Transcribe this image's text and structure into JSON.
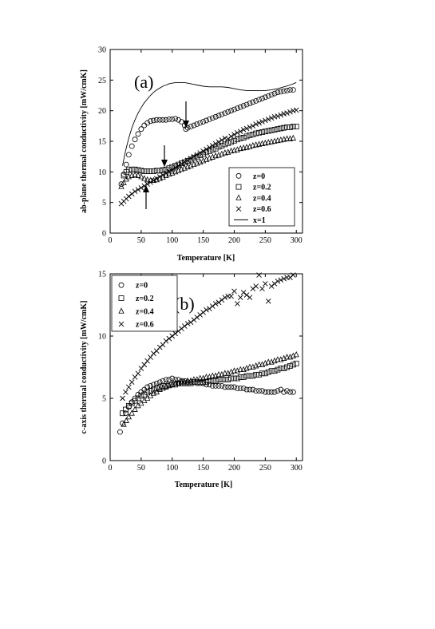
{
  "chart_data": [
    {
      "type": "scatter",
      "panel_label": "(a)",
      "xlabel": "Temperature [K]",
      "ylabel": "ab-plane thermal conductivity [mW/cmK]",
      "xlim": [
        0,
        310
      ],
      "ylim": [
        0,
        30
      ],
      "xticks": [
        "0",
        "50",
        "100",
        "150",
        "200",
        "250",
        "300"
      ],
      "yticks": [
        "0",
        "5",
        "10",
        "15",
        "20",
        "25",
        "30"
      ],
      "legend_position": "lower-right",
      "series": [
        {
          "name": "z=0",
          "marker": "circle",
          "x": [
            18,
            22,
            26,
            30,
            35,
            40,
            45,
            50,
            55,
            60,
            65,
            70,
            75,
            80,
            85,
            90,
            95,
            100,
            105,
            110,
            115,
            120,
            122,
            125,
            130,
            135,
            140,
            145,
            150,
            155,
            160,
            165,
            170,
            175,
            180,
            185,
            190,
            195,
            200,
            205,
            210,
            215,
            220,
            225,
            230,
            235,
            240,
            245,
            250,
            255,
            260,
            265,
            270,
            275,
            280,
            285,
            290,
            295
          ],
          "y": [
            8.0,
            9.6,
            11.2,
            12.8,
            14.2,
            15.3,
            16.2,
            17.0,
            17.6,
            18.0,
            18.3,
            18.4,
            18.5,
            18.5,
            18.5,
            18.5,
            18.6,
            18.6,
            18.7,
            18.5,
            18.2,
            17.6,
            17.0,
            17.2,
            17.4,
            17.6,
            17.8,
            18.0,
            18.2,
            18.4,
            18.6,
            18.8,
            19.0,
            19.2,
            19.4,
            19.6,
            19.8,
            20.0,
            20.2,
            20.4,
            20.6,
            20.8,
            21.0,
            21.2,
            21.4,
            21.6,
            21.8,
            22.0,
            22.2,
            22.4,
            22.6,
            22.8,
            23.0,
            23.1,
            23.2,
            23.3,
            23.4,
            23.4
          ]
        },
        {
          "name": "z=0.2",
          "marker": "square",
          "x": [
            22,
            26,
            30,
            35,
            40,
            45,
            50,
            55,
            60,
            65,
            70,
            75,
            80,
            85,
            90,
            95,
            100,
            105,
            110,
            115,
            120,
            125,
            130,
            135,
            140,
            145,
            150,
            155,
            160,
            165,
            170,
            175,
            180,
            185,
            190,
            195,
            200,
            205,
            210,
            215,
            220,
            225,
            230,
            235,
            240,
            245,
            250,
            255,
            260,
            265,
            270,
            275,
            280,
            285,
            290,
            295,
            300
          ],
          "y": [
            9.4,
            10.0,
            10.3,
            10.4,
            10.4,
            10.3,
            10.2,
            10.1,
            10.1,
            10.1,
            10.1,
            10.2,
            10.2,
            10.3,
            10.4,
            10.6,
            10.8,
            11.0,
            11.2,
            11.4,
            11.6,
            11.8,
            12.0,
            12.3,
            12.5,
            12.7,
            12.9,
            13.2,
            13.4,
            13.6,
            13.8,
            14.1,
            14.3,
            14.5,
            14.7,
            14.9,
            15.1,
            15.3,
            15.5,
            15.6,
            15.8,
            16.0,
            16.1,
            16.3,
            16.4,
            16.5,
            16.6,
            16.7,
            16.8,
            16.9,
            17.0,
            17.1,
            17.2,
            17.3,
            17.3,
            17.4,
            17.4
          ]
        },
        {
          "name": "z=0.4",
          "marker": "triangle",
          "x": [
            18,
            22,
            26,
            30,
            35,
            40,
            45,
            50,
            55,
            60,
            65,
            70,
            75,
            80,
            85,
            90,
            95,
            100,
            105,
            110,
            115,
            120,
            125,
            130,
            135,
            140,
            145,
            150,
            155,
            160,
            165,
            170,
            175,
            180,
            185,
            190,
            195,
            200,
            205,
            210,
            215,
            220,
            225,
            230,
            235,
            240,
            245,
            250,
            255,
            260,
            265,
            270,
            275,
            280,
            285,
            290,
            295
          ],
          "y": [
            7.6,
            8.2,
            8.8,
            9.2,
            9.4,
            9.5,
            9.4,
            9.2,
            8.9,
            8.7,
            8.6,
            8.6,
            8.7,
            8.9,
            9.1,
            9.4,
            9.6,
            9.8,
            10.0,
            10.2,
            10.4,
            10.6,
            10.8,
            11.0,
            11.2,
            11.4,
            11.6,
            11.8,
            12.0,
            12.2,
            12.4,
            12.6,
            12.7,
            12.9,
            13.1,
            13.2,
            13.4,
            13.5,
            13.6,
            13.8,
            13.9,
            14.0,
            14.1,
            14.3,
            14.4,
            14.5,
            14.6,
            14.7,
            14.8,
            14.9,
            15.0,
            15.1,
            15.2,
            15.3,
            15.4,
            15.4,
            15.5
          ]
        },
        {
          "name": "z=0.6",
          "marker": "x",
          "x": [
            18,
            22,
            26,
            30,
            35,
            40,
            45,
            50,
            55,
            60,
            65,
            70,
            75,
            80,
            85,
            90,
            95,
            100,
            105,
            110,
            115,
            120,
            125,
            130,
            135,
            140,
            145,
            150,
            155,
            160,
            165,
            170,
            175,
            180,
            185,
            190,
            195,
            200,
            205,
            210,
            215,
            220,
            225,
            230,
            235,
            240,
            245,
            250,
            255,
            260,
            265,
            270,
            275,
            280,
            285,
            290,
            295,
            300
          ],
          "y": [
            4.8,
            5.2,
            5.6,
            6.0,
            6.4,
            6.8,
            7.1,
            7.4,
            7.7,
            8.0,
            8.3,
            8.6,
            8.9,
            9.2,
            9.5,
            9.8,
            10.1,
            10.4,
            10.7,
            11.0,
            11.3,
            11.6,
            11.9,
            12.2,
            12.5,
            12.8,
            13.1,
            13.4,
            13.7,
            14.0,
            14.3,
            14.6,
            14.9,
            15.2,
            15.5,
            15.4,
            15.8,
            16.1,
            16.4,
            16.6,
            16.9,
            17.1,
            17.3,
            17.5,
            17.8,
            18.0,
            18.2,
            18.4,
            18.6,
            18.8,
            19.0,
            19.1,
            19.3,
            19.5,
            19.6,
            19.8,
            20.0,
            20.1
          ]
        },
        {
          "name": "x=1",
          "marker": "line",
          "x": [
            20,
            25,
            30,
            35,
            40,
            45,
            50,
            55,
            60,
            65,
            70,
            75,
            80,
            85,
            90,
            95,
            100,
            105,
            110,
            115,
            120,
            125,
            130,
            135,
            140,
            150,
            160,
            170,
            180,
            190,
            200,
            210,
            220,
            230,
            240,
            250,
            260,
            270,
            280,
            290,
            300
          ],
          "y": [
            11.0,
            13.5,
            15.5,
            17.2,
            18.5,
            19.6,
            20.5,
            21.3,
            21.9,
            22.5,
            23.0,
            23.4,
            23.7,
            24.0,
            24.2,
            24.4,
            24.5,
            24.6,
            24.6,
            24.6,
            24.6,
            24.5,
            24.4,
            24.3,
            24.2,
            24.0,
            23.9,
            23.9,
            23.9,
            23.8,
            23.6,
            23.4,
            23.3,
            23.3,
            23.3,
            23.3,
            23.4,
            23.6,
            23.9,
            24.2,
            24.6
          ]
        }
      ]
    },
    {
      "type": "scatter",
      "panel_label": "(b)",
      "xlabel": "Temperature [K]",
      "ylabel": "c-axis thermal conductivity [mW/cmK]",
      "xlim": [
        0,
        310
      ],
      "ylim": [
        0,
        15
      ],
      "xticks": [
        "0",
        "50",
        "100",
        "150",
        "200",
        "250",
        "300"
      ],
      "yticks": [
        "0",
        "5",
        "10",
        "15"
      ],
      "legend_position": "top-left",
      "series": [
        {
          "name": "z=0",
          "marker": "circle",
          "x": [
            16,
            20,
            25,
            30,
            35,
            40,
            45,
            50,
            55,
            60,
            65,
            70,
            75,
            80,
            85,
            90,
            95,
            100,
            105,
            110,
            115,
            120,
            125,
            130,
            135,
            140,
            145,
            150,
            155,
            160,
            165,
            170,
            175,
            180,
            185,
            190,
            195,
            200,
            205,
            210,
            215,
            220,
            225,
            230,
            235,
            240,
            245,
            250,
            255,
            260,
            265,
            270,
            275,
            280,
            285,
            290,
            295
          ],
          "y": [
            2.3,
            3.0,
            3.8,
            4.3,
            4.7,
            5.0,
            5.3,
            5.5,
            5.7,
            5.9,
            6.0,
            6.1,
            6.2,
            6.3,
            6.4,
            6.5,
            6.5,
            6.6,
            6.5,
            6.5,
            6.4,
            6.4,
            6.3,
            6.3,
            6.3,
            6.2,
            6.2,
            6.2,
            6.1,
            6.1,
            6.0,
            6.0,
            6.0,
            6.0,
            5.9,
            5.9,
            5.9,
            5.9,
            5.8,
            5.8,
            5.8,
            5.7,
            5.7,
            5.7,
            5.6,
            5.6,
            5.6,
            5.5,
            5.5,
            5.5,
            5.5,
            5.6,
            5.7,
            5.5,
            5.6,
            5.5,
            5.5
          ]
        },
        {
          "name": "z=0.2",
          "marker": "square",
          "x": [
            20,
            25,
            30,
            35,
            40,
            45,
            50,
            55,
            60,
            65,
            70,
            75,
            80,
            85,
            90,
            95,
            100,
            105,
            110,
            115,
            120,
            125,
            130,
            135,
            140,
            145,
            150,
            155,
            160,
            165,
            170,
            175,
            180,
            185,
            190,
            195,
            200,
            205,
            210,
            215,
            220,
            225,
            230,
            235,
            240,
            245,
            250,
            255,
            260,
            265,
            270,
            275,
            280,
            285,
            290,
            295,
            300
          ],
          "y": [
            3.8,
            4.1,
            4.4,
            4.6,
            4.8,
            5.0,
            5.2,
            5.3,
            5.5,
            5.6,
            5.7,
            5.8,
            5.9,
            6.0,
            6.0,
            6.1,
            6.1,
            6.1,
            6.2,
            6.2,
            6.2,
            6.2,
            6.2,
            6.3,
            6.3,
            6.3,
            6.3,
            6.3,
            6.4,
            6.4,
            6.4,
            6.5,
            6.5,
            6.5,
            6.5,
            6.6,
            6.6,
            6.6,
            6.7,
            6.7,
            6.8,
            6.8,
            6.8,
            6.9,
            6.9,
            7.0,
            7.0,
            7.1,
            7.2,
            7.2,
            7.3,
            7.4,
            7.4,
            7.5,
            7.6,
            7.7,
            7.8
          ]
        },
        {
          "name": "z=0.4",
          "marker": "triangle",
          "x": [
            22,
            26,
            30,
            35,
            40,
            45,
            50,
            55,
            60,
            65,
            70,
            75,
            80,
            85,
            90,
            95,
            100,
            105,
            110,
            115,
            120,
            125,
            130,
            135,
            140,
            145,
            150,
            155,
            160,
            165,
            170,
            175,
            180,
            185,
            190,
            195,
            200,
            205,
            210,
            215,
            220,
            225,
            230,
            235,
            240,
            245,
            250,
            255,
            260,
            265,
            270,
            275,
            280,
            285,
            290,
            295,
            300
          ],
          "y": [
            2.9,
            3.2,
            3.5,
            3.8,
            4.1,
            4.4,
            4.6,
            4.8,
            5.0,
            5.2,
            5.4,
            5.5,
            5.7,
            5.8,
            5.9,
            6.0,
            6.1,
            6.2,
            6.2,
            6.3,
            6.3,
            6.4,
            6.4,
            6.5,
            6.5,
            6.6,
            6.6,
            6.7,
            6.7,
            6.8,
            6.8,
            6.9,
            6.9,
            7.0,
            7.0,
            7.1,
            7.2,
            7.2,
            7.3,
            7.3,
            7.4,
            7.5,
            7.5,
            7.6,
            7.7,
            7.7,
            7.8,
            7.9,
            7.9,
            8.0,
            8.1,
            8.1,
            8.2,
            8.3,
            8.3,
            8.4,
            8.5
          ]
        },
        {
          "name": "z=0.6",
          "marker": "x",
          "x": [
            20,
            25,
            30,
            35,
            40,
            45,
            50,
            55,
            60,
            65,
            70,
            75,
            80,
            85,
            90,
            95,
            100,
            105,
            110,
            115,
            120,
            125,
            130,
            135,
            140,
            145,
            150,
            155,
            160,
            165,
            170,
            175,
            180,
            185,
            190,
            195,
            200,
            205,
            210,
            215,
            220,
            225,
            230,
            235,
            240,
            245,
            250,
            255,
            260,
            265,
            270,
            275,
            280,
            285,
            290,
            295
          ],
          "y": [
            5.0,
            5.5,
            5.9,
            6.3,
            6.7,
            7.0,
            7.4,
            7.7,
            8.0,
            8.3,
            8.6,
            8.8,
            9.1,
            9.3,
            9.6,
            9.8,
            10.0,
            10.2,
            10.4,
            10.6,
            10.8,
            11.0,
            11.1,
            11.3,
            11.5,
            11.7,
            11.9,
            12.1,
            12.2,
            12.4,
            12.6,
            12.7,
            12.9,
            13.1,
            13.2,
            13.2,
            13.6,
            12.6,
            13.1,
            13.5,
            13.3,
            13.1,
            13.8,
            14.0,
            14.9,
            13.8,
            14.2,
            12.8,
            14.0,
            14.2,
            14.4,
            14.5,
            14.6,
            14.7,
            14.7,
            14.9
          ]
        }
      ]
    }
  ]
}
